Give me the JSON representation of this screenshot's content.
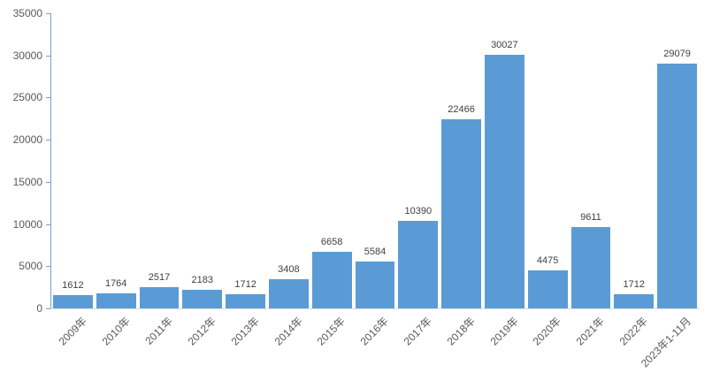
{
  "chart_data": {
    "type": "bar",
    "title": "",
    "xlabel": "",
    "ylabel": "",
    "categories": [
      "2009年",
      "2010年",
      "2011年",
      "2012年",
      "2013年",
      "2014年",
      "2015年",
      "2016年",
      "2017年",
      "2018年",
      "2019年",
      "2020年",
      "2021年",
      "2022年",
      "2023年1-11月"
    ],
    "values": [
      1612,
      1764,
      2517,
      2183,
      1712,
      3408,
      6658,
      5584,
      10390,
      22466,
      30027,
      4475,
      9611,
      1712,
      29079
    ],
    "ylim": [
      0,
      35000
    ],
    "y_ticks": [
      0,
      5000,
      10000,
      15000,
      20000,
      25000,
      30000,
      35000
    ],
    "grid": false,
    "legend": false,
    "data_labels": true,
    "x_label_rotation_deg": 45,
    "colors": {
      "bar": "#5B9BD5",
      "value_label": "#404040",
      "axis_tick_label": "#595959",
      "value_axis_line": "#6FA0D8",
      "category_axis_line": "#D9D9D9",
      "background": "#FFFFFF"
    }
  }
}
